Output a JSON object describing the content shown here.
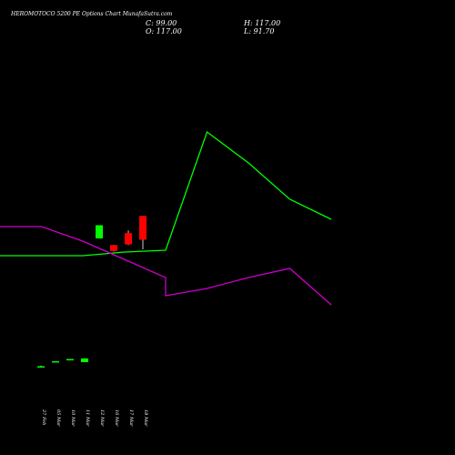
{
  "header": {
    "title": "HEROMOTOCO 5200 PE Options Chart MunafaSutra.com",
    "close": "C: 99.00",
    "high": "H: 117.00",
    "open": "O: 117.00",
    "low": "L: 91.70"
  },
  "chart_data": {
    "type": "candlestick",
    "title": "HEROMOTOCO 5200 PE Options Chart MunafaSutra.com",
    "categories": [
      "27 Feb",
      "05 Mar",
      "10 Mar",
      "11 Mar",
      "12 Mar",
      "16 Mar",
      "17 Mar",
      "18 Mar"
    ],
    "candles": [
      {
        "open": 3.2,
        "high": 3.6,
        "low": 2.2,
        "close": 2.5,
        "color": "#00ff00"
      },
      {
        "open": 7.0,
        "high": 7.0,
        "low": 6.8,
        "close": 7.0,
        "color": "#00ff00"
      },
      {
        "open": 8.2,
        "high": 8.6,
        "low": 8.2,
        "close": 8.6,
        "color": "#00ff00"
      },
      {
        "open": 6.2,
        "high": 9.2,
        "low": 6.2,
        "close": 9.0,
        "color": "#00ff00"
      },
      {
        "open": 100.0,
        "high": 110.0,
        "low": 100.0,
        "close": 110.0,
        "color": "#00ff00"
      },
      {
        "open": 95.0,
        "high": 95.0,
        "low": 90.0,
        "close": 90.5,
        "color": "#ff0000"
      },
      {
        "open": 104.0,
        "high": 106.0,
        "low": 95.0,
        "close": 95.5,
        "color": "#ff0000"
      },
      {
        "open": 117.0,
        "high": 117.0,
        "low": 91.7,
        "close": 99.0,
        "color": "#ff0000"
      }
    ],
    "price_ylim": [
      -20,
      160
    ],
    "green_line": {
      "color": "#00ff00",
      "values": [
        102,
        102,
        102,
        104,
        105,
        105,
        170,
        153,
        133,
        122
      ]
    },
    "magenta_line": {
      "color": "#cc00cc",
      "values": [
        118,
        118,
        110,
        100,
        90,
        80,
        84,
        90,
        95,
        75
      ]
    },
    "indicator_ylim": [
      0,
      200
    ],
    "grid": false
  }
}
